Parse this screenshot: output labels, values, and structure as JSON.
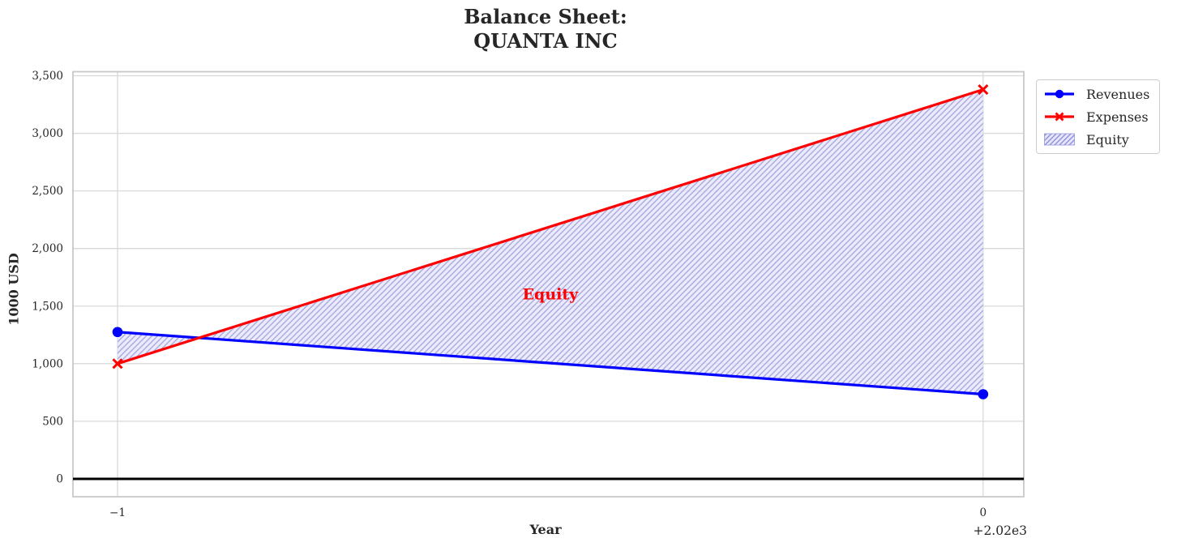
{
  "figure": {
    "title_lines": [
      "Balance Sheet:",
      "QUANTA INC"
    ],
    "xlabel": "Year",
    "ylabel": "1000 USD",
    "x_offset_label": "+2.02e3",
    "background": "#ffffff"
  },
  "legend": {
    "items": [
      {
        "label": "Revenues",
        "swatch": "blue-line-circle-marker"
      },
      {
        "label": "Expenses",
        "swatch": "red-line-x-marker"
      },
      {
        "label": "Equity",
        "swatch": "lavender-hatched-patch"
      }
    ]
  },
  "chart_data": {
    "type": "line",
    "title": "Balance Sheet:\nQUANTA INC",
    "xlabel": "Year",
    "ylabel": "1000 USD",
    "x": [
      2019,
      2020
    ],
    "x_display": [
      -1,
      0
    ],
    "x_offset_label": "+2.02e3",
    "series": [
      {
        "name": "Revenues",
        "color": "#0000ff",
        "marker": "circle",
        "values": [
          1275,
          735
        ]
      },
      {
        "name": "Expenses",
        "color": "#ff0000",
        "marker": "x",
        "values": [
          1000,
          3380
        ]
      }
    ],
    "fill_between": {
      "label": "Equity",
      "between": [
        "Revenues",
        "Expenses"
      ],
      "fill_color": "#e6e6fa",
      "hatch": "//",
      "hatch_color": "#a9a9e2"
    },
    "annotation": {
      "text": "Equity",
      "color": "#ff0000",
      "x": -0.5,
      "y": 1600
    },
    "xticks": {
      "values": [
        -1,
        0
      ],
      "labels": [
        "−1",
        "0"
      ]
    },
    "yticks": {
      "values": [
        0,
        500,
        1000,
        1500,
        2000,
        2500,
        3000,
        3500
      ],
      "labels": [
        "0",
        "500",
        "1,000",
        "1,500",
        "2,000",
        "2,500",
        "3,000",
        "3,500"
      ]
    },
    "xlim": [
      -1.0515,
      0.047
    ],
    "ylim": [
      -155,
      3535
    ],
    "grid": true,
    "zero_line": true,
    "legend_position": "outside upper right",
    "colors": {
      "grid": "#d9d9d9",
      "spine": "#c8c8c8",
      "tick_text": "#262626",
      "zero_line": "#000000"
    }
  }
}
